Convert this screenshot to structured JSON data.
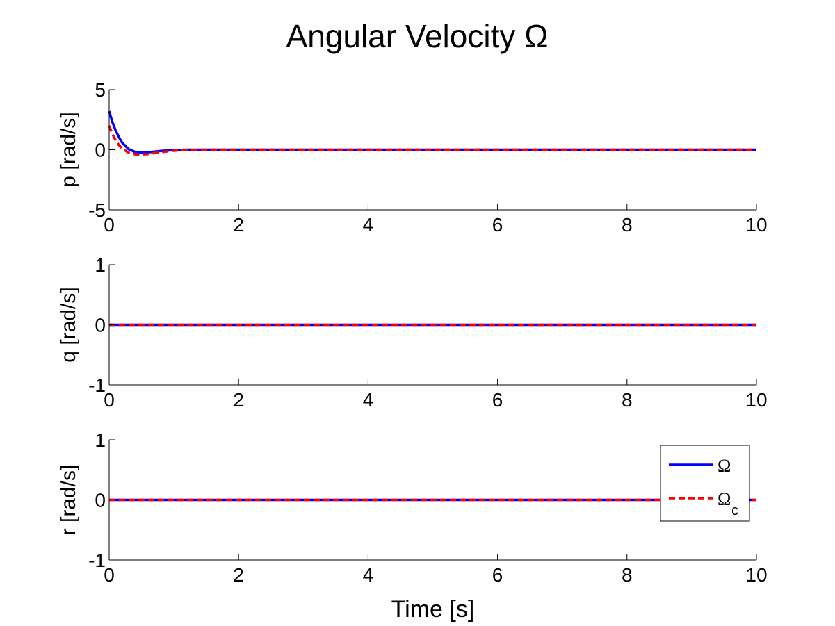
{
  "chart_data": [
    {
      "type": "line",
      "title": "Angular Velocity Ω",
      "ylabel": "p [rad/s]",
      "xlabel": "",
      "xlim": [
        0,
        10
      ],
      "ylim": [
        -5,
        5
      ],
      "xticks": [
        "0",
        "2",
        "4",
        "6",
        "8",
        "10"
      ],
      "yticks": [
        "-5",
        "0",
        "5"
      ],
      "grid": false,
      "series": [
        {
          "name": "Ω",
          "color": "#0000ff",
          "style": "solid",
          "x": [
            0,
            0.05,
            0.1,
            0.15,
            0.2,
            0.3,
            0.4,
            0.5,
            0.6,
            0.7,
            0.8,
            1.0,
            1.2,
            1.5,
            2,
            3,
            4,
            5,
            6,
            7,
            8,
            9,
            10
          ],
          "y": [
            3.2,
            2.3,
            1.6,
            1.05,
            0.6,
            0.05,
            -0.18,
            -0.24,
            -0.22,
            -0.16,
            -0.1,
            -0.03,
            0.0,
            0.0,
            0,
            0,
            0,
            0,
            0,
            0,
            0,
            0,
            0
          ]
        },
        {
          "name": "Ω_c",
          "color": "#ff0000",
          "style": "dashed",
          "x": [
            0,
            0.05,
            0.1,
            0.15,
            0.2,
            0.3,
            0.4,
            0.5,
            0.6,
            0.7,
            0.8,
            1.0,
            1.2,
            1.5,
            2,
            3,
            4,
            5,
            6,
            7,
            8,
            9,
            10
          ],
          "y": [
            2.0,
            1.3,
            0.8,
            0.4,
            0.1,
            -0.25,
            -0.38,
            -0.4,
            -0.36,
            -0.28,
            -0.2,
            -0.08,
            -0.02,
            0.0,
            0,
            0,
            0,
            0,
            0,
            0,
            0,
            0,
            0
          ]
        }
      ]
    },
    {
      "type": "line",
      "title": "",
      "ylabel": "q [rad/s]",
      "xlabel": "",
      "xlim": [
        0,
        10
      ],
      "ylim": [
        -1,
        1
      ],
      "xticks": [
        "0",
        "2",
        "4",
        "6",
        "8",
        "10"
      ],
      "yticks": [
        "-1",
        "0",
        "1"
      ],
      "grid": false,
      "series": [
        {
          "name": "Ω",
          "color": "#0000ff",
          "style": "solid",
          "x": [
            0,
            10
          ],
          "y": [
            0,
            0
          ]
        },
        {
          "name": "Ω_c",
          "color": "#ff0000",
          "style": "dashed",
          "x": [
            0,
            10
          ],
          "y": [
            0,
            0
          ]
        }
      ]
    },
    {
      "type": "line",
      "title": "",
      "ylabel": "r [rad/s]",
      "xlabel": "Time [s]",
      "xlim": [
        0,
        10
      ],
      "ylim": [
        -1,
        1
      ],
      "xticks": [
        "0",
        "2",
        "4",
        "6",
        "8",
        "10"
      ],
      "yticks": [
        "-1",
        "0",
        "1"
      ],
      "grid": false,
      "legend": {
        "placement": "top-right",
        "entries": [
          "Ω",
          "Ω",
          "c"
        ]
      },
      "series": [
        {
          "name": "Ω",
          "color": "#0000ff",
          "style": "solid",
          "x": [
            0,
            10
          ],
          "y": [
            0,
            0
          ]
        },
        {
          "name": "Ω_c",
          "color": "#ff0000",
          "style": "dashed",
          "x": [
            0,
            10
          ],
          "y": [
            0,
            0
          ]
        }
      ]
    }
  ]
}
